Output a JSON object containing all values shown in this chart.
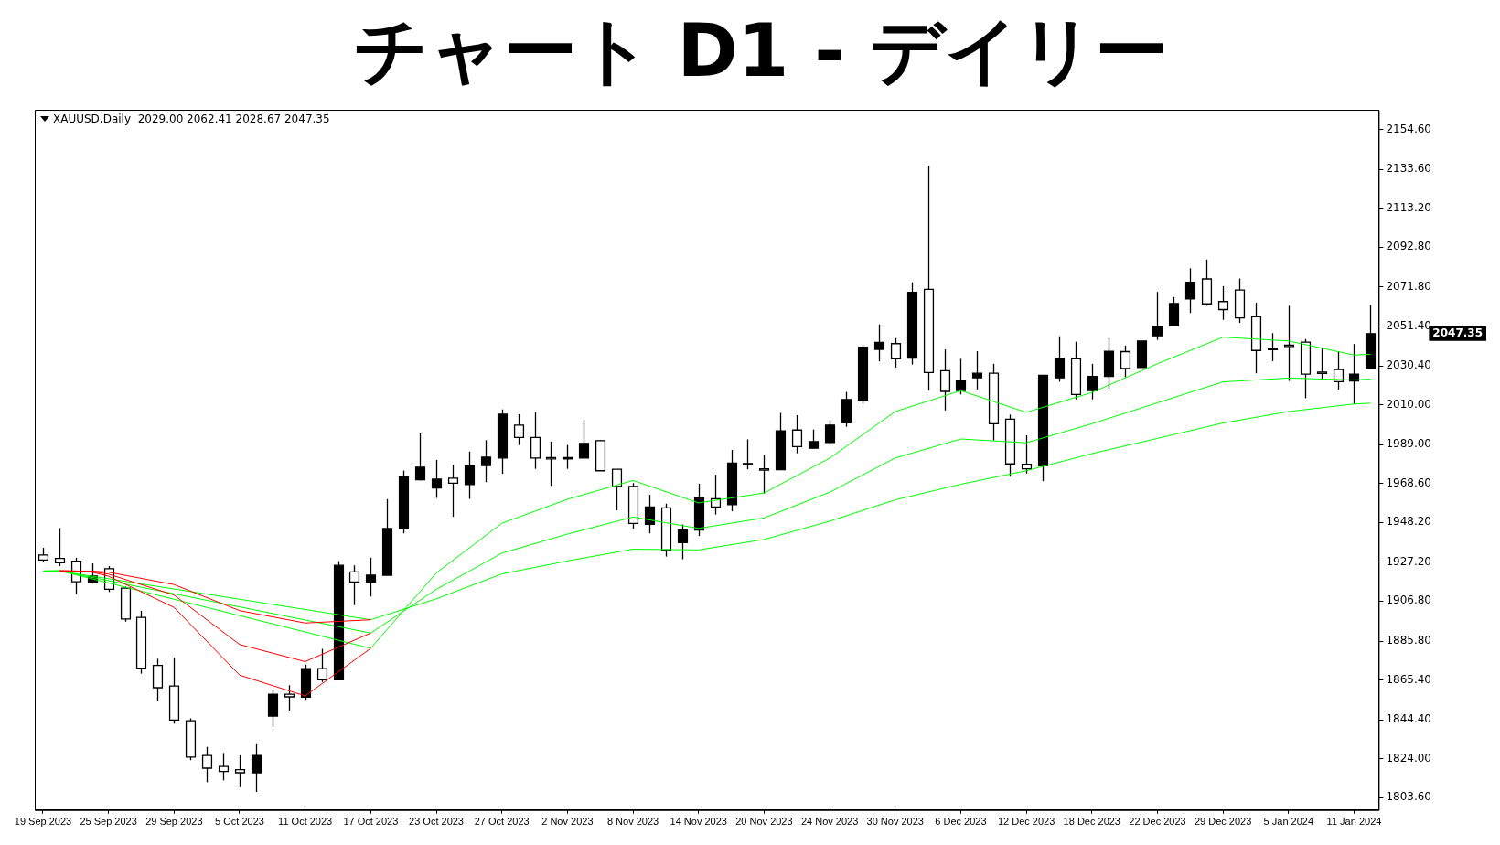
{
  "chart_data": {
    "type": "candlestick",
    "title": "チャート D1 - デイリー",
    "categories": [
      "19 Sep 2023",
      null,
      null,
      null,
      "25 Sep 2023",
      null,
      null,
      null,
      "29 Sep 2023",
      null,
      null,
      null,
      "5 Oct 2023",
      null,
      null,
      null,
      "11 Oct 2023",
      null,
      null,
      null,
      "17 Oct 2023",
      null,
      null,
      null,
      "23 Oct 2023",
      null,
      null,
      null,
      "27 Oct 2023",
      null,
      null,
      null,
      "2 Nov 2023",
      null,
      null,
      null,
      "8 Nov 2023",
      null,
      null,
      null,
      "14 Nov 2023",
      null,
      null,
      null,
      "20 Nov 2023",
      null,
      null,
      null,
      "24 Nov 2023",
      null,
      null,
      null,
      "30 Nov 2023",
      null,
      null,
      null,
      "6 Dec 2023",
      null,
      null,
      null,
      "12 Dec 2023",
      null,
      null,
      null,
      "18 Dec 2023",
      null,
      null,
      null,
      "22 Dec 2023",
      null,
      null,
      null,
      "29 Dec 2023",
      null,
      null,
      null,
      "5 Jan 2024",
      null,
      null,
      null,
      "11 Jan 2024",
      null
    ],
    "ohlc": [
      [
        1931.0,
        1934.8,
        1927.3,
        1928.4
      ],
      [
        1929.2,
        1945.2,
        1925.2,
        1927.0
      ],
      [
        1927.8,
        1929.6,
        1910.4,
        1917.0
      ],
      [
        1916.9,
        1926.6,
        1916.2,
        1920.0
      ],
      [
        1923.8,
        1925.2,
        1911.6,
        1913.0
      ],
      [
        1913.6,
        1914.4,
        1896.0,
        1897.4
      ],
      [
        1898.2,
        1901.7,
        1868.7,
        1871.6
      ],
      [
        1873.0,
        1876.5,
        1854.2,
        1861.3
      ],
      [
        1862.2,
        1877.0,
        1842.4,
        1844.3
      ],
      [
        1843.9,
        1845.2,
        1823.2,
        1824.8
      ],
      [
        1825.7,
        1830.2,
        1811.6,
        1819.0
      ],
      [
        1819.9,
        1827.0,
        1812.6,
        1817.3
      ],
      [
        1818.2,
        1825.7,
        1809.0,
        1816.6
      ],
      [
        1816.6,
        1831.6,
        1806.5,
        1825.7
      ],
      [
        1846.4,
        1859.9,
        1840.5,
        1857.9
      ],
      [
        1857.9,
        1862.6,
        1849.3,
        1856.5
      ],
      [
        1856.3,
        1873.4,
        1854.9,
        1871.3
      ],
      [
        1871.3,
        1881.7,
        1864.3,
        1865.5
      ],
      [
        1865.5,
        1927.8,
        1865.5,
        1925.6
      ],
      [
        1922.1,
        1925.6,
        1904.7,
        1916.9
      ],
      [
        1916.9,
        1929.6,
        1909.2,
        1920.4
      ],
      [
        1920.4,
        1960.4,
        1920.4,
        1944.9
      ],
      [
        1944.8,
        1975.4,
        1942.4,
        1972.3
      ],
      [
        1970.6,
        1994.9,
        1970.2,
        1977.2
      ],
      [
        1966.2,
        1981.0,
        1961.0,
        1970.9
      ],
      [
        1971.4,
        1978.4,
        1951.1,
        1968.8
      ],
      [
        1968.0,
        1985.4,
        1960.5,
        1977.9
      ],
      [
        1978.0,
        1991.4,
        1969.3,
        1982.4
      ],
      [
        1982.0,
        2007.5,
        1973.7,
        2005.0
      ],
      [
        1999.3,
        2005.0,
        1988.8,
        1992.8
      ],
      [
        1992.8,
        2006.1,
        1976.3,
        1982.0
      ],
      [
        1982.2,
        1990.6,
        1967.4,
        1981.9
      ],
      [
        1982.0,
        1988.8,
        1976.3,
        1982.2
      ],
      [
        1982.0,
        2001.9,
        1982.0,
        1989.7
      ],
      [
        1991.1,
        1991.4,
        1975.3,
        1975.3
      ],
      [
        1976.1,
        1976.1,
        1954.5,
        1967.1
      ],
      [
        1967.1,
        1968.8,
        1944.8,
        1947.6
      ],
      [
        1947.1,
        1962.7,
        1942.4,
        1956.3
      ],
      [
        1955.8,
        1958.0,
        1930.2,
        1933.7
      ],
      [
        1937.5,
        1947.1,
        1928.8,
        1944.1
      ],
      [
        1944.1,
        1968.5,
        1941.0,
        1961.0
      ],
      [
        1960.6,
        1973.2,
        1952.3,
        1956.3
      ],
      [
        1957.5,
        1986.2,
        1954.0,
        1979.3
      ],
      [
        1978.7,
        1991.8,
        1976.1,
        1979.1
      ],
      [
        1976.3,
        1983.6,
        1963.3,
        1976.0
      ],
      [
        1975.8,
        2005.7,
        1975.8,
        1996.3
      ],
      [
        1996.7,
        2004.5,
        1984.5,
        1988.0
      ],
      [
        1987.1,
        1997.0,
        1987.1,
        1990.6
      ],
      [
        1990.2,
        2001.9,
        1988.8,
        1999.3
      ],
      [
        2000.5,
        2016.7,
        1998.4,
        2012.7
      ],
      [
        2012.5,
        2041.7,
        2010.4,
        2040.2
      ],
      [
        2039.1,
        2052.2,
        2032.8,
        2042.8
      ],
      [
        2042.1,
        2045.0,
        2029.5,
        2034.1
      ],
      [
        2034.5,
        2074.3,
        2031.1,
        2069.0
      ],
      [
        2070.6,
        2135.7,
        2017.4,
        2026.9
      ],
      [
        2027.9,
        2039.1,
        2007.0,
        2017.0
      ],
      [
        2017.4,
        2034.1,
        2015.4,
        2022.5
      ],
      [
        2024.1,
        2038.1,
        2018.0,
        2026.5
      ],
      [
        2026.5,
        2031.5,
        1991.3,
        2000.0
      ],
      [
        2002.4,
        2004.8,
        1972.2,
        1978.9
      ],
      [
        1978.7,
        1993.9,
        1973.9,
        1976.3
      ],
      [
        1977.9,
        2025.5,
        1969.8,
        2025.5
      ],
      [
        2024.1,
        2046.0,
        2022.1,
        2034.5
      ],
      [
        2034.1,
        2043.1,
        2012.8,
        2015.4
      ],
      [
        2017.4,
        2031.5,
        2012.8,
        2024.9
      ],
      [
        2024.9,
        2045.0,
        2018.4,
        2038.1
      ],
      [
        2037.9,
        2041.1,
        2024.5,
        2029.1
      ],
      [
        2029.5,
        2043.5,
        2029.5,
        2043.5
      ],
      [
        2046.2,
        2069.3,
        2044.1,
        2051.2
      ],
      [
        2051.6,
        2066.6,
        2051.6,
        2063.2
      ],
      [
        2065.6,
        2081.7,
        2058.2,
        2074.3
      ],
      [
        2076.1,
        2086.3,
        2062.0,
        2063.0
      ],
      [
        2064.2,
        2072.3,
        2054.6,
        2060.0
      ],
      [
        2070.3,
        2076.3,
        2053.0,
        2055.6
      ],
      [
        2056.2,
        2063.6,
        2026.5,
        2038.5
      ],
      [
        2039.7,
        2047.6,
        2032.9,
        2039.4
      ],
      [
        2041.3,
        2062.0,
        2022.5,
        2041.0
      ],
      [
        2042.9,
        2044.5,
        2013.4,
        2026.1
      ],
      [
        2027.1,
        2039.9,
        2022.9,
        2026.7
      ],
      [
        2028.5,
        2038.1,
        2018.0,
        2022.1
      ],
      [
        2022.5,
        2041.9,
        2010.4,
        2026.1
      ],
      [
        2029.0,
        2062.41,
        2028.67,
        2047.35
      ]
    ],
    "color": "#000000",
    "colors": [
      "#ffffff",
      "#ffffff",
      "#ffffff",
      "#000000",
      "#ffffff",
      "#ffffff",
      "#ffffff",
      "#ffffff",
      "#ffffff",
      "#ffffff",
      "#ffffff",
      "#ffffff",
      "#ffffff",
      "#000000",
      "#000000",
      "#ffffff",
      "#000000",
      "#ffffff",
      "#000000",
      "#ffffff",
      "#000000",
      "#000000",
      "#000000",
      "#000000",
      "#000000",
      "#ffffff",
      "#000000",
      "#000000",
      "#000000",
      "#ffffff",
      "#ffffff",
      "#ffffff",
      "#000000",
      "#000000",
      "#ffffff",
      "#ffffff",
      "#ffffff",
      "#000000",
      "#ffffff",
      "#000000",
      "#000000",
      "#ffffff",
      "#000000",
      "#000000",
      "#ffffff",
      "#000000",
      "#ffffff",
      "#000000",
      "#000000",
      "#000000",
      "#000000",
      "#000000",
      "#ffffff",
      "#000000",
      "#ffffff",
      "#ffffff",
      "#000000",
      "#000000",
      "#ffffff",
      "#ffffff",
      "#ffffff",
      "#000000",
      "#000000",
      "#ffffff",
      "#000000",
      "#000000",
      "#ffffff",
      "#000000",
      "#000000",
      "#000000",
      "#000000",
      "#ffffff",
      "#ffffff",
      "#ffffff",
      "#ffffff",
      "#ffffff",
      "#ffffff",
      "#ffffff",
      "#ffffff",
      "#ffffff",
      "#000000",
      "#000000"
    ],
    "series": [
      {
        "type": "line",
        "color": "#ff0000",
        "values": [
          null,
          1922.8,
          1922.6,
          1922.0,
          1919.9,
          null,
          null,
          null,
          1903.5,
          null,
          null,
          null,
          1867.9,
          null,
          null,
          null,
          1857.0,
          null,
          null,
          null,
          1882.0,
          null,
          null,
          null,
          null,
          null,
          null,
          null,
          null,
          null,
          null,
          null,
          null,
          null,
          null,
          null,
          null,
          null,
          null,
          null,
          null,
          null,
          null,
          null,
          null,
          null,
          null,
          null,
          null,
          null,
          null,
          null,
          null,
          null,
          null,
          null,
          null,
          null,
          null,
          null,
          null,
          null,
          null,
          null,
          null,
          null,
          null,
          null,
          null,
          null,
          null,
          null,
          null,
          null,
          null,
          null,
          null,
          null,
          null,
          null,
          null,
          null
        ]
      },
      {
        "type": "line",
        "color": "#ff0000",
        "values": [
          null,
          1922.7,
          1922.6,
          1922.3,
          1921.0,
          null,
          null,
          null,
          1910.0,
          null,
          null,
          null,
          1884.0,
          null,
          null,
          null,
          1875.0,
          null,
          null,
          null,
          1890.0,
          null,
          null,
          null,
          null,
          null,
          null,
          null,
          null,
          null,
          null,
          null,
          null,
          null,
          null,
          null,
          null,
          null,
          null,
          null,
          null,
          null,
          null,
          null,
          null,
          null,
          null,
          null,
          null,
          null,
          null,
          null,
          null,
          null,
          null,
          null,
          null,
          null,
          null,
          null,
          null,
          null,
          null,
          null,
          null,
          null,
          null,
          null,
          null,
          null,
          null,
          null,
          null,
          null,
          null,
          null,
          null,
          null,
          null,
          null,
          null,
          null
        ]
      },
      {
        "type": "line",
        "color": "#ff0000",
        "values": [
          null,
          1922.6,
          1922.6,
          1922.6,
          1922.0,
          null,
          null,
          null,
          1915.5,
          null,
          null,
          null,
          1901.8,
          null,
          null,
          null,
          1895.3,
          null,
          null,
          null,
          1897.0,
          null,
          null,
          null,
          null,
          null,
          null,
          null,
          null,
          null,
          null,
          null,
          null,
          null,
          null,
          null,
          null,
          null,
          null,
          null,
          null,
          null,
          null,
          null,
          null,
          null,
          null,
          null,
          null,
          null,
          null,
          null,
          null,
          null,
          null,
          null,
          null,
          null,
          null,
          null,
          null,
          null,
          null,
          null,
          null,
          null,
          null,
          null,
          null,
          null,
          null,
          null,
          null,
          null,
          null,
          null,
          null,
          null,
          null,
          null,
          null,
          null
        ]
      },
      {
        "type": "line",
        "color": "#00ff00",
        "values": [
          1922.6,
          1922.8,
          null,
          null,
          null,
          null,
          null,
          null,
          null,
          null,
          null,
          null,
          null,
          null,
          null,
          null,
          null,
          null,
          null,
          null,
          1882.0,
          null,
          null,
          null,
          1921.6,
          null,
          null,
          null,
          1947.7,
          null,
          null,
          null,
          1960.3,
          null,
          null,
          null,
          1970.2,
          null,
          null,
          null,
          1958.4,
          null,
          null,
          null,
          1963.6,
          null,
          null,
          null,
          1981.9,
          null,
          null,
          null,
          2006.4,
          null,
          null,
          null,
          2017.4,
          null,
          null,
          null,
          2006.0,
          null,
          null,
          null,
          2016.4,
          null,
          null,
          null,
          2031.5,
          null,
          null,
          null,
          2045.5,
          null,
          null,
          null,
          2043.5,
          null,
          null,
          null,
          2036.1,
          2036.5
        ]
      },
      {
        "type": "line",
        "color": "#00ff00",
        "values": [
          1922.6,
          1922.7,
          null,
          null,
          null,
          null,
          null,
          null,
          null,
          null,
          null,
          null,
          null,
          null,
          null,
          null,
          null,
          null,
          null,
          null,
          1890.0,
          null,
          null,
          null,
          1913.0,
          null,
          null,
          null,
          1932.0,
          null,
          null,
          null,
          1942.0,
          null,
          null,
          null,
          1951.0,
          null,
          null,
          null,
          1945.0,
          null,
          null,
          null,
          1950.5,
          null,
          null,
          null,
          1964.0,
          null,
          null,
          null,
          1982.0,
          null,
          null,
          null,
          1992.0,
          null,
          null,
          null,
          1990.0,
          null,
          null,
          null,
          2000.0,
          null,
          null,
          null,
          2011.0,
          null,
          null,
          null,
          2022.0,
          null,
          null,
          null,
          2024.0,
          null,
          null,
          null,
          2023.0,
          2023.5
        ]
      },
      {
        "type": "line",
        "color": "#00ff00",
        "values": [
          1922.6,
          1922.6,
          null,
          null,
          null,
          null,
          null,
          null,
          null,
          null,
          null,
          null,
          null,
          null,
          null,
          null,
          null,
          null,
          null,
          null,
          1897.0,
          null,
          null,
          null,
          1908.0,
          null,
          null,
          null,
          1921.1,
          null,
          null,
          null,
          1927.9,
          null,
          null,
          null,
          1934.1,
          null,
          null,
          null,
          1933.7,
          null,
          null,
          null,
          1939.2,
          null,
          null,
          null,
          1948.8,
          null,
          null,
          null,
          1960.0,
          null,
          null,
          null,
          1968.2,
          null,
          null,
          null,
          1975.3,
          null,
          null,
          null,
          1984.3,
          null,
          null,
          null,
          1992.3,
          null,
          null,
          null,
          2000.4,
          null,
          null,
          null,
          2006.4,
          null,
          null,
          null,
          2010.4,
          2010.8
        ]
      }
    ],
    "ylim": [
      1797,
      2165
    ],
    "yticks": [
      {
        "value": 1803.6,
        "label": "1803.60"
      },
      {
        "value": 1824.0,
        "label": "1824.00"
      },
      {
        "value": 1844.4,
        "label": "1844.40"
      },
      {
        "value": 1865.4,
        "label": "1865.40"
      },
      {
        "value": 1885.8,
        "label": "1885.80"
      },
      {
        "value": 1906.8,
        "label": "1906.80"
      },
      {
        "value": 1927.2,
        "label": "1927.20"
      },
      {
        "value": 1948.2,
        "label": "1948.20"
      },
      {
        "value": 1968.6,
        "label": "1968.60"
      },
      {
        "value": 1989.0,
        "label": "1989.00"
      },
      {
        "value": 2010.0,
        "label": "2010.00"
      },
      {
        "value": 2030.4,
        "label": "2030.40"
      },
      {
        "value": 2051.4,
        "label": "2051.40"
      },
      {
        "value": 2071.8,
        "label": "2071.80"
      },
      {
        "value": 2092.8,
        "label": "2092.80"
      },
      {
        "value": 2113.2,
        "label": "2113.20"
      },
      {
        "value": 2133.6,
        "label": "2133.60"
      },
      {
        "value": 2154.6,
        "label": "2154.60"
      }
    ],
    "marker": "none",
    "annotations": [
      "XAUUSD,Daily  2029.00 2062.41 2028.67 2047.35",
      "2047.35"
    ]
  }
}
